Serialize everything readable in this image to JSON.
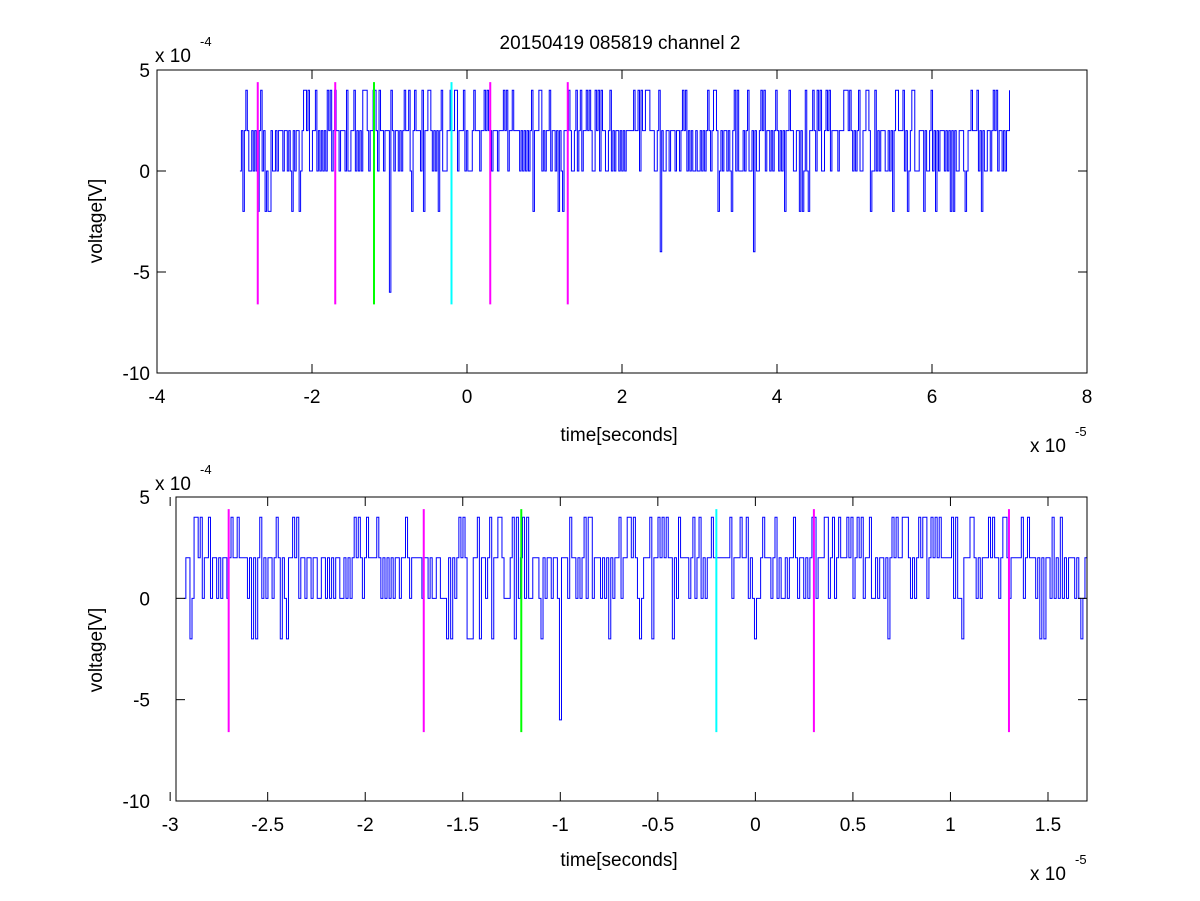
{
  "figure": {
    "title": "20150419 085819 channel 2"
  },
  "colors": {
    "signal": "#0000ff",
    "marker_magenta": "#ff00ff",
    "marker_green": "#00ff00",
    "marker_cyan": "#00ffff",
    "axes": "#000000"
  },
  "chart_data": [
    {
      "type": "line",
      "title": "20150419 085819 channel 2",
      "xlabel": "time[seconds]",
      "ylabel": "voltage[V]",
      "x_exponent_label": "x 10",
      "x_exponent": "-5",
      "y_exponent_label": "x 10",
      "y_exponent": "-4",
      "xlim": [
        -4e-05,
        8e-05
      ],
      "ylim": [
        -0.001,
        0.0005
      ],
      "xticks": [
        -4e-05,
        -2e-05,
        0,
        2e-05,
        4e-05,
        6e-05,
        8e-05
      ],
      "xtick_labels": [
        "-4",
        "-2",
        "0",
        "2",
        "4",
        "6",
        "8"
      ],
      "yticks": [
        -0.001,
        -0.0005,
        0,
        0.0005
      ],
      "ytick_labels": [
        "-10",
        "-5",
        "0",
        "5"
      ],
      "grid": false,
      "series": [
        {
          "color": "#0000ff",
          "style": "noise trace quantized to 2e-4 V steps",
          "x_range": [
            -2.93e-05,
            7e-05
          ],
          "levels": [
            -0.0006,
            -0.0004,
            -0.0002,
            0,
            0.0002,
            0.0004
          ],
          "notable_points": [
            {
              "x": -2.93e-05,
              "y": 0
            },
            {
              "x": -2.9e-05,
              "y": -0.0002
            },
            {
              "x": -1e-05,
              "y": -0.0006
            },
            {
              "x": 2.5e-05,
              "y": -0.0004
            },
            {
              "x": 3.7e-05,
              "y": -0.0004
            },
            {
              "x": 6.98e-05,
              "y": 0.0002
            },
            {
              "x": 7e-05,
              "y": 0.0004
            }
          ]
        }
      ],
      "markers": [
        {
          "x": -2.7e-05,
          "y_from": -0.00066,
          "y_to": 0.00044,
          "color": "#ff00ff"
        },
        {
          "x": -1.7e-05,
          "y_from": -0.00066,
          "y_to": 0.00044,
          "color": "#ff00ff"
        },
        {
          "x": -1.2e-05,
          "y_from": -0.00066,
          "y_to": 0.00044,
          "color": "#00ff00"
        },
        {
          "x": -2e-06,
          "y_from": -0.00066,
          "y_to": 0.00044,
          "color": "#00ffff"
        },
        {
          "x": 3e-06,
          "y_from": -0.00066,
          "y_to": 0.00044,
          "color": "#ff00ff"
        },
        {
          "x": 1.3e-05,
          "y_from": -0.00066,
          "y_to": 0.00044,
          "color": "#ff00ff"
        }
      ]
    },
    {
      "type": "line",
      "title": "",
      "xlabel": "time[seconds]",
      "ylabel": "voltage[V]",
      "x_exponent_label": "x 10",
      "x_exponent": "-5",
      "y_exponent_label": "x 10",
      "y_exponent": "-4",
      "xlim": [
        -2.97e-05,
        1.7e-05
      ],
      "ylim": [
        -0.001,
        0.0005
      ],
      "xticks": [
        -3e-05,
        -2.5e-05,
        -2e-05,
        -1.5e-05,
        -1e-05,
        -5e-06,
        0,
        5e-06,
        1e-05,
        1.5e-05
      ],
      "xtick_labels": [
        "-3",
        "-2.5",
        "-2",
        "-1.5",
        "-1",
        "-0.5",
        "0",
        "0.5",
        "1",
        "1.5"
      ],
      "yticks": [
        -0.001,
        -0.0005,
        0,
        0.0005
      ],
      "ytick_labels": [
        "-10",
        "-5",
        "0",
        "5"
      ],
      "grid": false,
      "series": [
        {
          "color": "#0000ff",
          "style": "noise trace quantized to 2e-4 V steps",
          "x_range": [
            -2.93e-05,
            1.7e-05
          ],
          "levels": [
            -0.0006,
            -0.0004,
            -0.0002,
            0,
            0.0002,
            0.0004
          ],
          "notable_points": [
            {
              "x": -2.93e-05,
              "y": 0
            },
            {
              "x": -2.9e-05,
              "y": -0.0002
            },
            {
              "x": -2.88e-05,
              "y": 0.0004
            },
            {
              "x": -1e-05,
              "y": -0.0006
            },
            {
              "x": 1.7e-05,
              "y": 0.0002
            }
          ]
        }
      ],
      "markers": [
        {
          "x": -2.7e-05,
          "y_from": -0.00066,
          "y_to": 0.00044,
          "color": "#ff00ff"
        },
        {
          "x": -1.7e-05,
          "y_from": -0.00066,
          "y_to": 0.00044,
          "color": "#ff00ff"
        },
        {
          "x": -1.2e-05,
          "y_from": -0.00066,
          "y_to": 0.00044,
          "color": "#00ff00"
        },
        {
          "x": -2e-06,
          "y_from": -0.00066,
          "y_to": 0.00044,
          "color": "#00ffff"
        },
        {
          "x": 3e-06,
          "y_from": -0.00066,
          "y_to": 0.00044,
          "color": "#ff00ff"
        },
        {
          "x": 1.3e-05,
          "y_from": -0.00066,
          "y_to": 0.00044,
          "color": "#ff00ff"
        }
      ]
    }
  ]
}
